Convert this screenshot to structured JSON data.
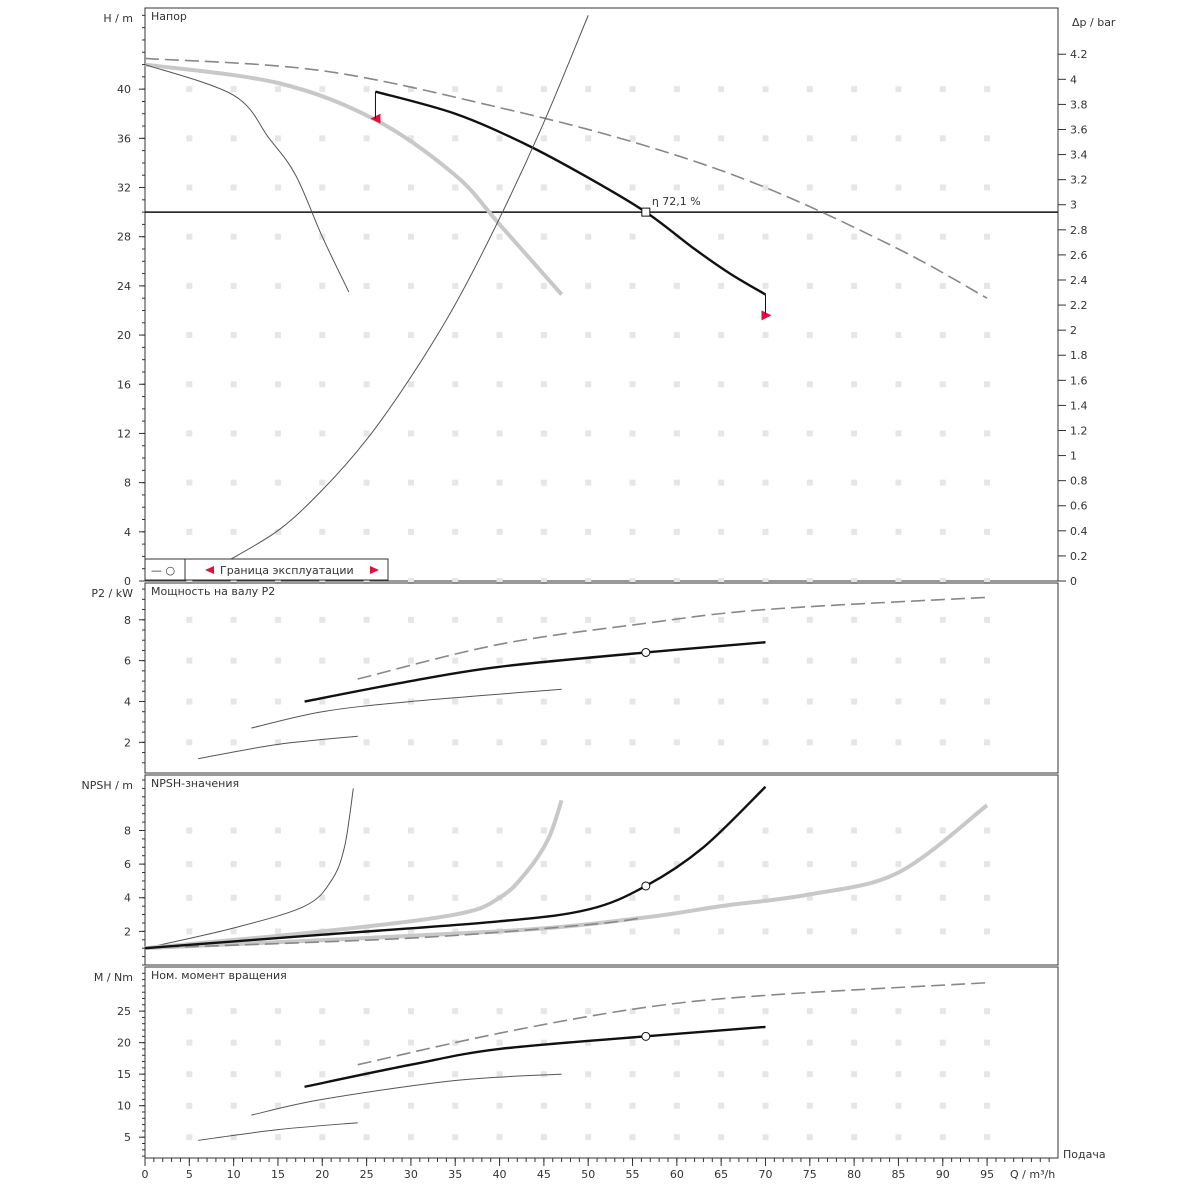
{
  "x_axis": {
    "label": "Q / m³/h",
    "title": "Подача",
    "range": [
      0,
      103
    ],
    "ticks": [
      0,
      5,
      10,
      15,
      20,
      25,
      30,
      35,
      40,
      45,
      50,
      55,
      60,
      65,
      70,
      75,
      80,
      85,
      90,
      95
    ]
  },
  "colors": {
    "main": "#111111",
    "dashed": "#888888",
    "thin": "#555555",
    "light": "#c8c8c8",
    "marker": "#e0103c"
  },
  "chart_data": [
    {
      "type": "line",
      "title": "Напор",
      "ylabel": "H / m",
      "ylabel_right": "Δp / bar",
      "ylim": [
        0,
        46.6
      ],
      "yticks": [
        0,
        4,
        8,
        12,
        16,
        20,
        24,
        28,
        32,
        36,
        40
      ],
      "yticks_right": [
        "0",
        "0.2",
        "0.4",
        "0.6",
        "0.8",
        "1",
        "1.2",
        "1.4",
        "1.6",
        "1.8",
        "2",
        "2.2",
        "2.4",
        "2.6",
        "2.8",
        "3",
        "3.2",
        "3.4",
        "3.6",
        "3.8",
        "4",
        "4.2"
      ],
      "duty_point": {
        "q": 56.5,
        "h": 30,
        "label": "η   72,1 %"
      },
      "reference_h": 30,
      "series": [
        {
          "style": "dashed",
          "points": [
            [
              0,
              42.5
            ],
            [
              20,
              41.5
            ],
            [
              40,
              38.5
            ],
            [
              56,
              35.5
            ],
            [
              70,
              32
            ],
            [
              85,
              27
            ],
            [
              95,
              23
            ]
          ]
        },
        {
          "style": "light",
          "points": [
            [
              0,
              42
            ],
            [
              15,
              40.5
            ],
            [
              26,
              37.5
            ],
            [
              35,
              33
            ],
            [
              40,
              29
            ],
            [
              47,
              23.3
            ]
          ]
        },
        {
          "style": "thin",
          "points": [
            [
              0,
              42
            ],
            [
              10,
              39.5
            ],
            [
              14,
              36
            ],
            [
              17,
              33
            ],
            [
              20,
              28
            ],
            [
              23,
              23.5
            ]
          ]
        },
        {
          "style": "main",
          "points": [
            [
              26,
              39.8
            ],
            [
              35,
              38
            ],
            [
              43,
              35.5
            ],
            [
              50,
              32.8
            ],
            [
              56.5,
              30
            ],
            [
              62,
              27
            ],
            [
              66,
              25
            ],
            [
              70,
              23.3
            ]
          ]
        },
        {
          "style": "system",
          "points": [
            [
              9,
              1.5
            ],
            [
              15,
              4.1
            ],
            [
              20,
              7.4
            ],
            [
              25,
              11.5
            ],
            [
              30,
              16.6
            ],
            [
              35,
              22.5
            ],
            [
              40,
              29.5
            ],
            [
              45,
              37.3
            ],
            [
              50,
              46
            ]
          ]
        }
      ],
      "markers": [
        {
          "q": 26,
          "h": 37.6,
          "dir": "left"
        },
        {
          "q": 70,
          "h": 21.6,
          "dir": "right"
        }
      ],
      "legend": {
        "item1": "— ○",
        "item2": "Граница эксплуатации"
      }
    },
    {
      "type": "line",
      "title": "Мощность на валу P2",
      "ylabel": "P2 / kW",
      "ylim": [
        0.5,
        9.8
      ],
      "yticks": [
        2,
        4,
        6,
        8
      ],
      "duty_point": {
        "q": 56.5,
        "y": 6.4
      },
      "series": [
        {
          "style": "dashed",
          "points": [
            [
              24,
              5.1
            ],
            [
              40,
              6.8
            ],
            [
              56,
              7.8
            ],
            [
              70,
              8.5
            ],
            [
              95,
              9.1
            ]
          ]
        },
        {
          "style": "main",
          "points": [
            [
              18,
              4
            ],
            [
              30,
              5
            ],
            [
              40,
              5.7
            ],
            [
              56.5,
              6.4
            ],
            [
              70,
              6.9
            ]
          ]
        },
        {
          "style": "thin",
          "points": [
            [
              12,
              2.7
            ],
            [
              20,
              3.5
            ],
            [
              30,
              4
            ],
            [
              47,
              4.6
            ]
          ]
        },
        {
          "style": "thin",
          "points": [
            [
              6,
              1.2
            ],
            [
              15,
              1.9
            ],
            [
              24,
              2.3
            ]
          ]
        }
      ]
    },
    {
      "type": "line",
      "title": "NPSH-значения",
      "ylabel": "NPSH / m",
      "ylim": [
        0,
        11.3
      ],
      "yticks": [
        2,
        4,
        6,
        8
      ],
      "duty_point": {
        "q": 56.5,
        "y": 4.7
      },
      "series": [
        {
          "style": "light",
          "points": [
            [
              0,
              1
            ],
            [
              40,
              2
            ],
            [
              56,
              2.8
            ],
            [
              65,
              3.5
            ],
            [
              75,
              4.2
            ],
            [
              85,
              5.5
            ],
            [
              95,
              9.5
            ]
          ]
        },
        {
          "style": "dashed",
          "points": [
            [
              0,
              1
            ],
            [
              30,
              1.6
            ],
            [
              50,
              2.4
            ],
            [
              56,
              2.8
            ]
          ]
        },
        {
          "style": "thin",
          "points": [
            [
              0,
              1
            ],
            [
              10,
              2.2
            ],
            [
              18,
              3.5
            ],
            [
              21,
              5
            ],
            [
              22.5,
              7
            ],
            [
              23.5,
              10.5
            ]
          ]
        },
        {
          "style": "light",
          "points": [
            [
              0,
              1
            ],
            [
              20,
              2
            ],
            [
              35,
              3
            ],
            [
              40,
              4
            ],
            [
              43,
              5.5
            ],
            [
              45.5,
              7.5
            ],
            [
              47,
              9.8
            ]
          ]
        },
        {
          "style": "main",
          "points": [
            [
              0,
              1
            ],
            [
              20,
              1.8
            ],
            [
              40,
              2.6
            ],
            [
              50,
              3.3
            ],
            [
              56.5,
              4.7
            ],
            [
              63,
              7
            ],
            [
              70,
              10.6
            ]
          ]
        }
      ]
    },
    {
      "type": "line",
      "title": "Ном. момент вращения",
      "ylabel": "M / Nm",
      "ylim": [
        1.7,
        32
      ],
      "yticks": [
        5,
        10,
        15,
        20,
        25
      ],
      "duty_point": {
        "q": 56.5,
        "y": 21
      },
      "series": [
        {
          "style": "dashed",
          "points": [
            [
              24,
              16.5
            ],
            [
              40,
              21.5
            ],
            [
              56,
              25.5
            ],
            [
              70,
              27.5
            ],
            [
              95,
              29.5
            ]
          ]
        },
        {
          "style": "main",
          "points": [
            [
              18,
              13
            ],
            [
              30,
              16.5
            ],
            [
              40,
              19
            ],
            [
              56.5,
              21
            ],
            [
              70,
              22.5
            ]
          ]
        },
        {
          "style": "thin",
          "points": [
            [
              12,
              8.5
            ],
            [
              20,
              11
            ],
            [
              35,
              14
            ],
            [
              47,
              15
            ]
          ]
        },
        {
          "style": "thin",
          "points": [
            [
              6,
              4.5
            ],
            [
              15,
              6.2
            ],
            [
              24,
              7.3
            ]
          ]
        }
      ]
    }
  ]
}
